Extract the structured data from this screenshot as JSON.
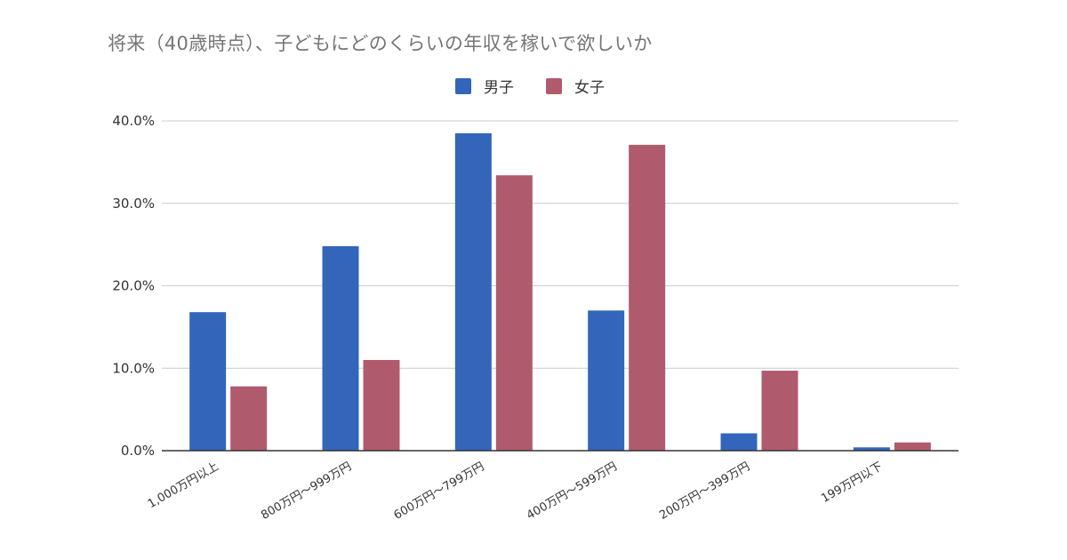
{
  "chart_data": {
    "type": "bar",
    "title": "将来（40歳時点）、子どもにどのくらいの年収を稼いで欲しいか",
    "categories": [
      "1,000万円以上",
      "800万円〜999万円",
      "600万円〜799万円",
      "400万円〜599万円",
      "200万円〜399万円",
      "199万円以下"
    ],
    "series": [
      {
        "name": "男子",
        "color": "#3366bb",
        "values": [
          16.8,
          24.8,
          38.5,
          17.0,
          2.1,
          0.4
        ]
      },
      {
        "name": "女子",
        "color": "#b05a6e",
        "values": [
          7.8,
          11.0,
          33.4,
          37.1,
          9.7,
          1.0
        ]
      }
    ],
    "ylim": [
      0,
      40
    ],
    "yticks": [
      "0.0%",
      "10.0%",
      "20.0%",
      "30.0%",
      "40.0%"
    ],
    "grid": true,
    "legend_position": "top-center"
  }
}
